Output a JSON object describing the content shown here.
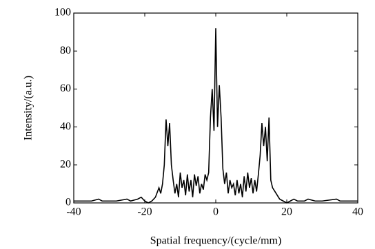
{
  "chart_data": {
    "type": "line",
    "xlabel": "Spatial frequency/(cycle/mm)",
    "ylabel": "Intensity/(a.u.)",
    "xlim": [
      -40,
      40
    ],
    "xticks": [
      -40,
      -20,
      0,
      20,
      40
    ],
    "ylim": [
      0,
      100
    ],
    "yticks": [
      0,
      20,
      40,
      60,
      80,
      100
    ],
    "series": [
      {
        "color": "#000000",
        "x": [
          -40,
          -35,
          -33,
          -32,
          -28,
          -25,
          -24,
          -22,
          -21,
          -20,
          -19,
          -18,
          -17,
          -16,
          -15.5,
          -15,
          -14.5,
          -14,
          -13.5,
          -13,
          -12.5,
          -12,
          -11.5,
          -11,
          -10.5,
          -10,
          -9.5,
          -9,
          -8.5,
          -8,
          -7.5,
          -7,
          -6.5,
          -6,
          -5.5,
          -5,
          -4.5,
          -4,
          -3.5,
          -3,
          -2.5,
          -2,
          -1.5,
          -1,
          -0.5,
          0,
          0.5,
          1,
          1.5,
          2,
          2.5,
          3,
          3.5,
          4,
          4.5,
          5,
          5.5,
          6,
          6.5,
          7,
          7.5,
          8,
          8.5,
          9,
          9.5,
          10,
          10.5,
          11,
          11.5,
          12,
          12.5,
          13,
          13.5,
          14,
          14.5,
          15,
          15.5,
          16,
          17,
          18,
          19,
          20,
          21,
          22,
          23,
          25,
          26,
          28,
          30,
          34,
          35,
          40
        ],
        "values": [
          1,
          1,
          2,
          1,
          1,
          2,
          1,
          2,
          3,
          1,
          0,
          1,
          3,
          8,
          5,
          10,
          20,
          44,
          30,
          42,
          20,
          12,
          5,
          10,
          3,
          16,
          8,
          12,
          4,
          15,
          6,
          12,
          3,
          15,
          9,
          14,
          5,
          10,
          7,
          15,
          12,
          16,
          45,
          60,
          38,
          92,
          40,
          62,
          45,
          18,
          10,
          16,
          5,
          12,
          8,
          10,
          4,
          12,
          5,
          10,
          3,
          14,
          6,
          16,
          8,
          13,
          5,
          12,
          6,
          15,
          25,
          42,
          30,
          40,
          22,
          45,
          12,
          8,
          5,
          2,
          1,
          0,
          1,
          2,
          1,
          1,
          2,
          1,
          1,
          2,
          1,
          1
        ]
      }
    ]
  }
}
